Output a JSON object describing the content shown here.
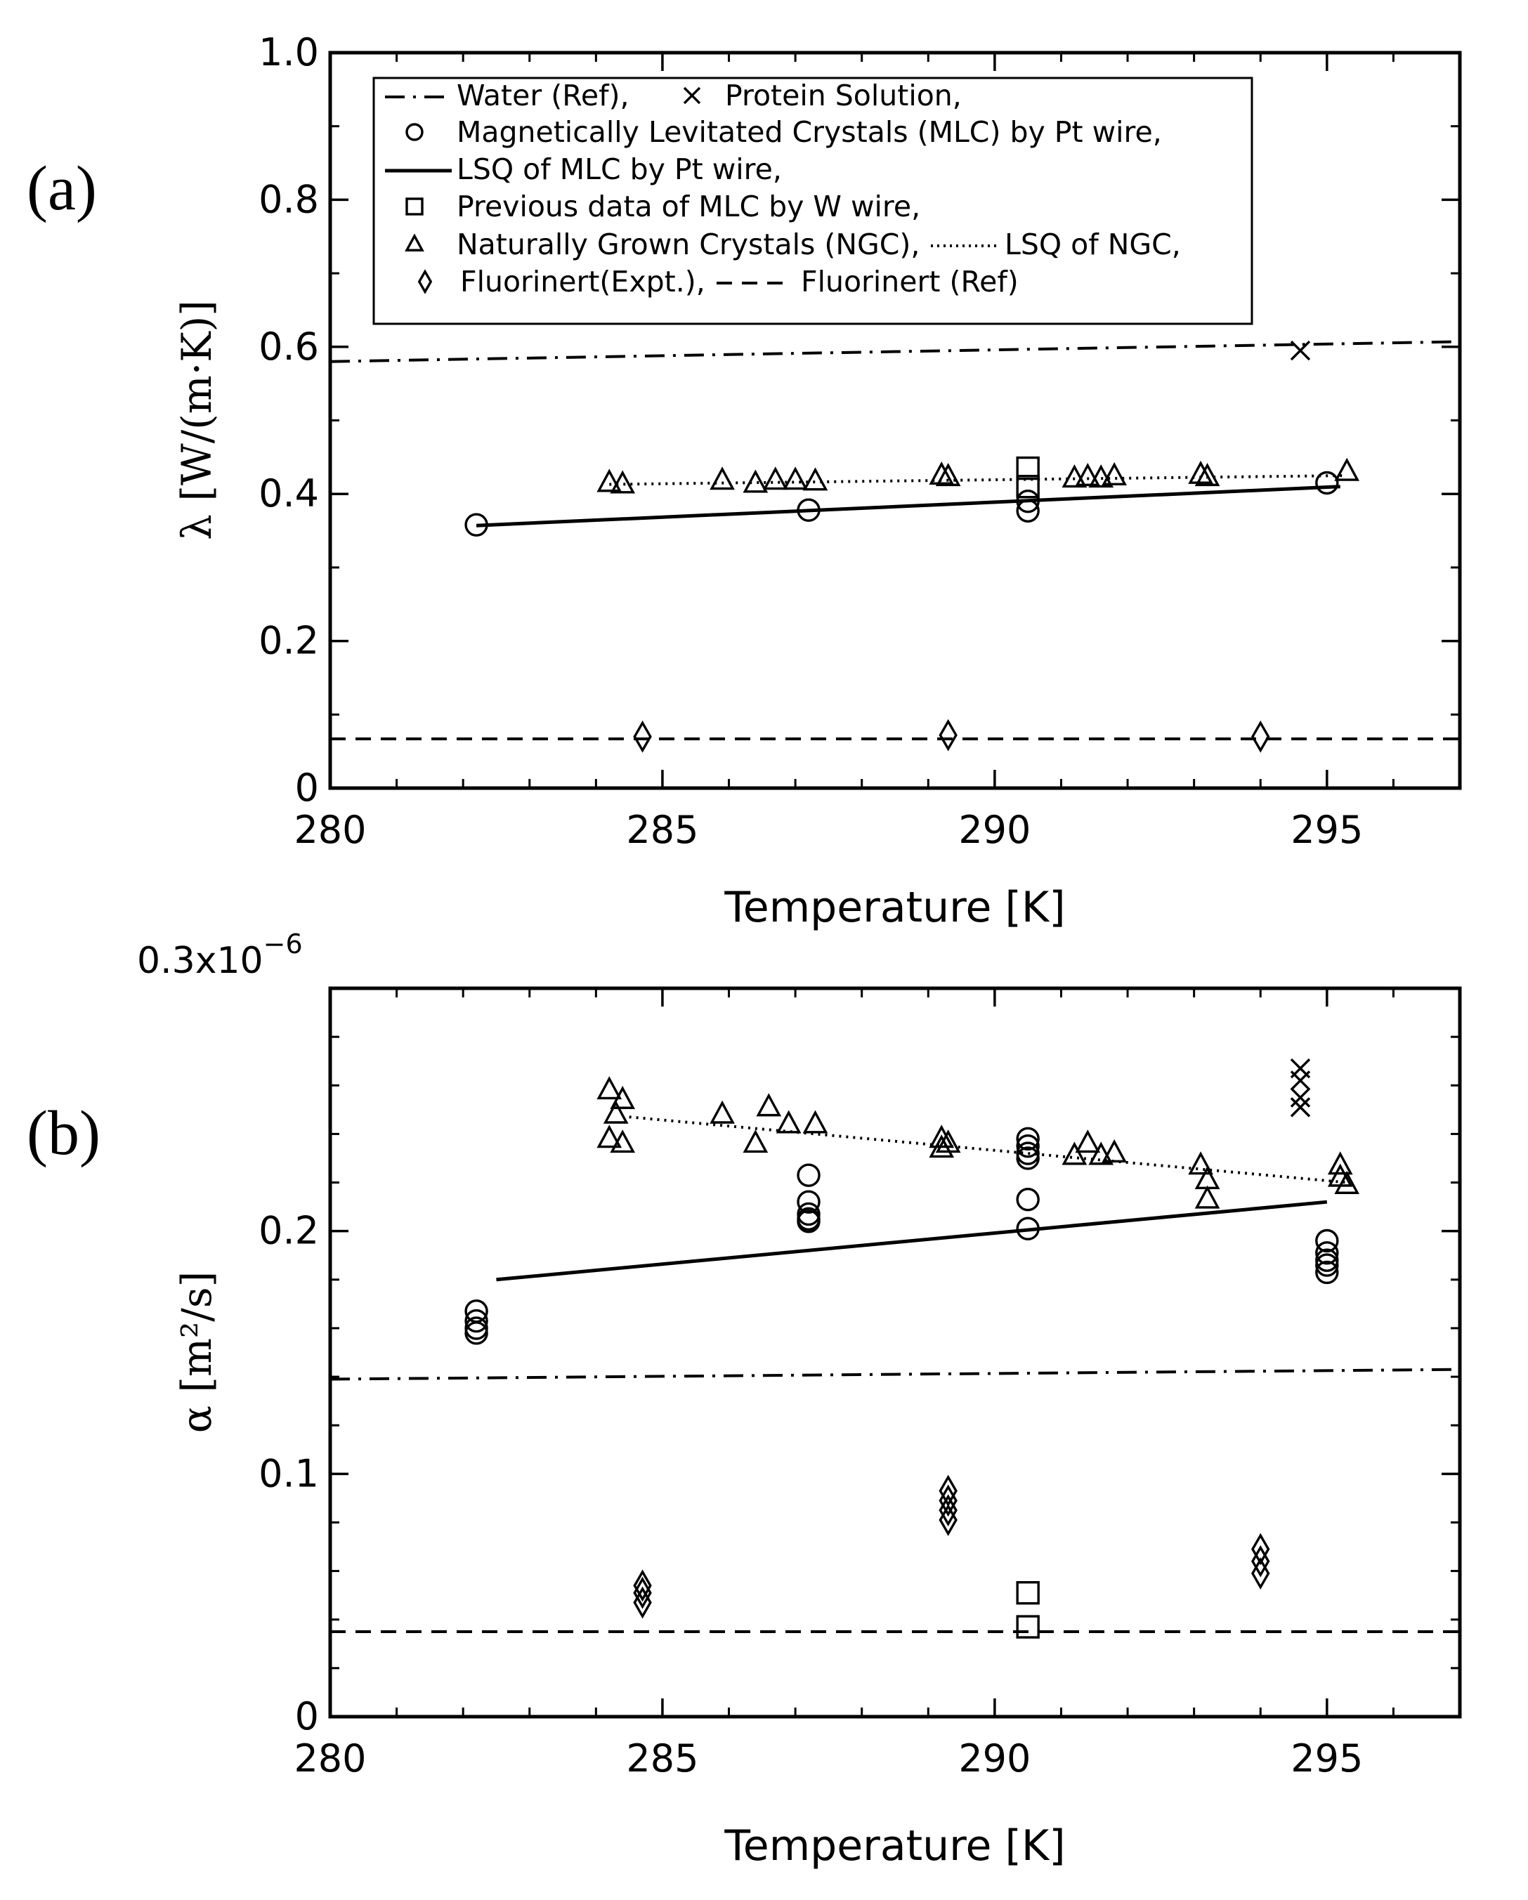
{
  "chart_data": [
    {
      "panel": "(a)",
      "type": "scatter",
      "xlabel": "Temperature [K]",
      "ylabel": "λ [W/(m·K)]",
      "xlim": [
        280,
        297
      ],
      "ylim": [
        0,
        1.0
      ],
      "xticks": [
        280,
        285,
        290,
        295
      ],
      "xtick_labels": [
        "280",
        "285",
        "290",
        "295"
      ],
      "yticks": [
        0,
        0.2,
        0.4,
        0.6,
        0.8,
        1.0
      ],
      "ytick_labels": [
        "0",
        "0.2",
        "0.4",
        "0.6",
        "0.8",
        "1.0"
      ],
      "legend": {
        "position": "top",
        "entries": [
          {
            "key": "water_ref",
            "label": "Water (Ref),"
          },
          {
            "key": "protein",
            "label": "Protein Solution,"
          },
          {
            "key": "mlc",
            "label": "Magnetically Levitated Crystals (MLC) by Pt wire,"
          },
          {
            "key": "mlc_lsq",
            "label": "LSQ of MLC by Pt wire,"
          },
          {
            "key": "prev_w",
            "label": "Previous data of MLC by W wire,"
          },
          {
            "key": "ngc",
            "label": "Naturally Grown Crystals (NGC),"
          },
          {
            "key": "ngc_lsq",
            "label": "LSQ of NGC,"
          },
          {
            "key": "fluo_expt",
            "label": "Fluorinert(Expt.),"
          },
          {
            "key": "fluo_ref",
            "label": "Fluorinert (Ref)"
          }
        ]
      },
      "series": [
        {
          "key": "water_ref",
          "style": "dashdot",
          "x": [
            280,
            297
          ],
          "y": [
            0.58,
            0.607
          ]
        },
        {
          "key": "fluo_ref",
          "style": "dashed",
          "x": [
            280,
            297
          ],
          "y": [
            0.067,
            0.067
          ]
        },
        {
          "key": "mlc_lsq",
          "style": "solid",
          "x": [
            282.2,
            295.2
          ],
          "y": [
            0.357,
            0.41
          ]
        },
        {
          "key": "ngc_lsq",
          "style": "dotted",
          "x": [
            284.2,
            295.3
          ],
          "y": [
            0.413,
            0.425
          ]
        },
        {
          "key": "protein",
          "marker": "x",
          "x": [
            294.6
          ],
          "y": [
            0.595
          ]
        },
        {
          "key": "mlc",
          "marker": "circle",
          "x": [
            282.2,
            287.2,
            290.5,
            290.5,
            295.0
          ],
          "y": [
            0.358,
            0.378,
            0.377,
            0.39,
            0.415
          ]
        },
        {
          "key": "prev_w",
          "marker": "square",
          "x": [
            290.5,
            290.5
          ],
          "y": [
            0.435,
            0.41
          ]
        },
        {
          "key": "ngc",
          "marker": "triangle",
          "x": [
            284.2,
            284.4,
            285.9,
            286.4,
            286.7,
            287.0,
            287.3,
            289.2,
            289.3,
            291.2,
            291.4,
            291.6,
            291.8,
            293.1,
            293.2,
            295.3
          ],
          "y": [
            0.415,
            0.413,
            0.418,
            0.414,
            0.418,
            0.418,
            0.417,
            0.425,
            0.423,
            0.421,
            0.423,
            0.421,
            0.424,
            0.426,
            0.423,
            0.43
          ]
        },
        {
          "key": "fluo_expt",
          "marker": "diamond",
          "x": [
            284.7,
            289.3,
            294.0
          ],
          "y": [
            0.07,
            0.072,
            0.07
          ]
        }
      ]
    },
    {
      "panel": "(b)",
      "type": "scatter",
      "xlabel": "Temperature [K]",
      "ylabel": "α [m²/s]",
      "exponent_label": "0.3x10",
      "exponent_power": "−6",
      "xlim": [
        280,
        297
      ],
      "ylim": [
        0,
        0.3
      ],
      "xticks": [
        280,
        285,
        290,
        295
      ],
      "xtick_labels": [
        "280",
        "285",
        "290",
        "295"
      ],
      "yticks": [
        0,
        0.1,
        0.2
      ],
      "ytick_labels": [
        "0",
        "0.1",
        "0.2"
      ],
      "series": [
        {
          "key": "water_ref",
          "style": "dashdot",
          "x": [
            280,
            297
          ],
          "y": [
            0.139,
            0.143
          ]
        },
        {
          "key": "fluo_ref",
          "style": "dashed",
          "x": [
            280,
            297
          ],
          "y": [
            0.035,
            0.035
          ]
        },
        {
          "key": "mlc_lsq",
          "style": "solid",
          "x": [
            282.5,
            295.0
          ],
          "y": [
            0.18,
            0.212
          ]
        },
        {
          "key": "ngc_lsq",
          "style": "dotted",
          "x": [
            284.5,
            295.3
          ],
          "y": [
            0.247,
            0.22
          ]
        },
        {
          "key": "protein",
          "marker": "x",
          "x": [
            294.6,
            294.6,
            294.6,
            294.6
          ],
          "y": [
            0.267,
            0.262,
            0.255,
            0.251
          ]
        },
        {
          "key": "mlc",
          "marker": "circle",
          "x": [
            282.2,
            282.2,
            282.2,
            282.2,
            287.2,
            287.2,
            287.2,
            287.2,
            287.2,
            290.5,
            290.5,
            290.5,
            290.5,
            290.5,
            290.5,
            295.0,
            295.0,
            295.0,
            295.0,
            295.0
          ],
          "y": [
            0.167,
            0.163,
            0.16,
            0.158,
            0.223,
            0.212,
            0.207,
            0.205,
            0.204,
            0.238,
            0.235,
            0.232,
            0.23,
            0.213,
            0.201,
            0.196,
            0.191,
            0.188,
            0.186,
            0.183
          ]
        },
        {
          "key": "prev_w",
          "marker": "square",
          "x": [
            290.5,
            290.5
          ],
          "y": [
            0.051,
            0.037
          ]
        },
        {
          "key": "ngc",
          "marker": "triangle",
          "x": [
            284.2,
            284.2,
            284.3,
            284.4,
            284.4,
            285.9,
            286.4,
            286.6,
            286.9,
            287.3,
            289.2,
            289.2,
            289.3,
            291.2,
            291.4,
            291.6,
            291.8,
            293.1,
            293.2,
            293.2,
            295.2,
            295.2,
            295.3
          ],
          "y": [
            0.258,
            0.238,
            0.248,
            0.254,
            0.236,
            0.248,
            0.236,
            0.251,
            0.244,
            0.244,
            0.238,
            0.234,
            0.236,
            0.231,
            0.236,
            0.231,
            0.232,
            0.227,
            0.221,
            0.213,
            0.227,
            0.222,
            0.219
          ]
        },
        {
          "key": "fluo_expt",
          "marker": "diamond",
          "x": [
            284.7,
            284.7,
            284.7,
            289.3,
            289.3,
            289.3,
            289.3,
            294.0,
            294.0,
            294.0
          ],
          "y": [
            0.054,
            0.051,
            0.047,
            0.093,
            0.089,
            0.085,
            0.081,
            0.069,
            0.064,
            0.059
          ]
        }
      ]
    }
  ]
}
